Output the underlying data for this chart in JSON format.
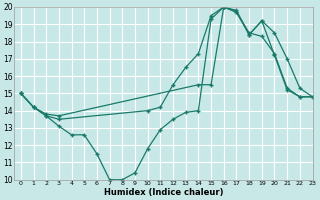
{
  "xlabel": "Humidex (Indice chaleur)",
  "bg_color": "#c8e8e8",
  "grid_color": "#ffffff",
  "line_color": "#1a7a6a",
  "ylim": [
    10,
    20
  ],
  "xlim": [
    -0.5,
    23
  ],
  "yticks": [
    10,
    11,
    12,
    13,
    14,
    15,
    16,
    17,
    18,
    19,
    20
  ],
  "xticks": [
    0,
    1,
    2,
    3,
    4,
    5,
    6,
    7,
    8,
    9,
    10,
    11,
    12,
    13,
    14,
    15,
    16,
    17,
    18,
    19,
    20,
    21,
    22,
    23
  ],
  "line1_x": [
    0,
    1,
    2,
    3,
    4,
    5,
    6,
    7,
    8,
    9,
    10,
    11,
    12,
    13,
    14,
    15,
    16,
    17,
    18,
    19,
    20,
    21,
    22,
    23
  ],
  "line1_y": [
    15,
    14.2,
    13.7,
    13.1,
    12.6,
    12.6,
    11.5,
    10.0,
    10.0,
    10.4,
    11.8,
    12.9,
    13.5,
    13.9,
    14.0,
    19.3,
    20.0,
    19.7,
    18.4,
    19.2,
    17.2,
    15.2,
    14.8,
    14.8
  ],
  "line2_x": [
    0,
    1,
    2,
    3,
    10,
    11,
    12,
    13,
    14,
    15,
    16,
    17,
    18,
    19,
    20,
    21,
    22,
    23
  ],
  "line2_y": [
    15,
    14.2,
    13.7,
    13.5,
    14.0,
    14.2,
    15.5,
    16.5,
    17.3,
    19.5,
    20.0,
    19.8,
    18.4,
    19.2,
    18.5,
    17.0,
    15.3,
    14.8
  ],
  "line3_x": [
    0,
    1,
    2,
    3,
    14,
    15,
    16,
    17,
    18,
    19,
    20,
    21,
    22,
    23
  ],
  "line3_y": [
    15,
    14.2,
    13.8,
    13.7,
    15.5,
    15.5,
    20.0,
    19.7,
    18.5,
    18.3,
    17.3,
    15.3,
    14.8,
    14.8
  ]
}
